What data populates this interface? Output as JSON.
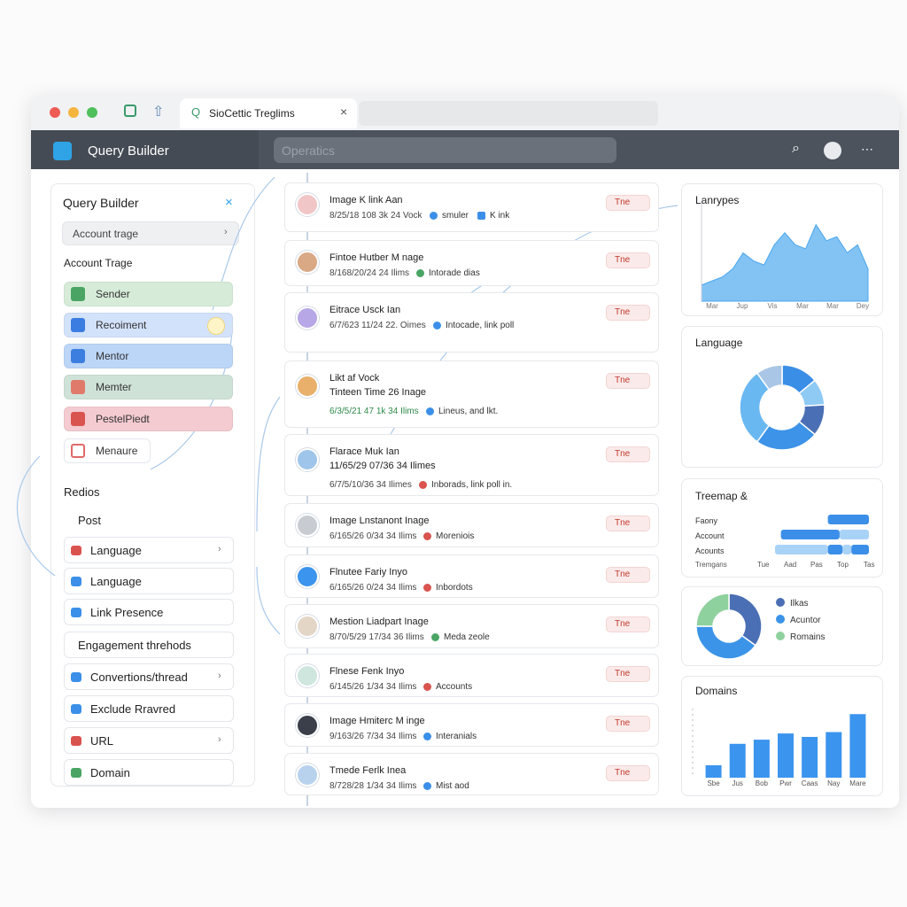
{
  "browser": {
    "tab_title": "SioCettic Treglims"
  },
  "app_bar": {
    "title": "Query Builder",
    "search_placeholder": "Operatics"
  },
  "query_builder": {
    "title": "Query Builder",
    "dropdown": "Account trage",
    "section_label": "Account Trage",
    "roles": [
      "Sender",
      "Recoiment",
      "Mentor",
      "Memter",
      "PestelPiedt",
      "Menaure"
    ]
  },
  "filters": {
    "title": "Redios",
    "items": [
      "Post",
      "Language",
      "Language",
      "Link Presence",
      "Engagement threhods",
      "Convertions/thread",
      "Exclude Rravred",
      "URL",
      "Domain"
    ]
  },
  "feed": [
    {
      "title": "Image K link Aan",
      "meta": "8/25/18 108 3k 24 Vock",
      "tags": [
        "smuler",
        "K ink"
      ],
      "badge": "Tne"
    },
    {
      "title": "Fintoe Hutber M nage",
      "meta": "8/168/20/24 24 Ilims",
      "tags": [
        "Intorade dias"
      ],
      "badge": "Tne"
    },
    {
      "title": "Eitrace Usck Ian",
      "meta": "6/7/623 11/24 22. Oimes",
      "tags": [
        "Intocade, link poll"
      ],
      "badge": "Tne"
    },
    {
      "title": "Likt af Vock",
      "subtitle": "Tinteen Time 26 Inage",
      "meta": "6/3/5/21 47 1k 34 Ilims",
      "tags": [
        "Lineus, and lkt."
      ],
      "badge": "Tne"
    },
    {
      "title": "Flarace Muk Ian",
      "subtitle": "11/65/29 07/36 34 Ilimes",
      "meta": "6/7/5/10/36 34 Ilimes",
      "tags": [
        "Inborads, link poll in."
      ],
      "badge": "Tne"
    },
    {
      "title": "Image Lnstanont Inage",
      "meta": "6/165/26 0/34 34 Ilims",
      "tags": [
        "Moreniois"
      ],
      "badge": "Tne"
    },
    {
      "title": "Flnutee Fariy Inyo",
      "meta": "6/165/26 0/24 34 Ilims",
      "tags": [
        "Inbordots"
      ],
      "badge": "Tne"
    },
    {
      "title": "Mestion Liadpart Inage",
      "meta": "8/70/5/29 17/34 36 Ilims",
      "tags": [
        "Meda zeole"
      ],
      "badge": "Tne"
    },
    {
      "title": "Flnese Fenk Inyo",
      "meta": "6/145/26 1/34 34 Ilims",
      "tags": [
        "Accounts"
      ],
      "badge": "Tne"
    },
    {
      "title": "Image Hmiterc M inge",
      "meta": "9/163/26 7/34 34 Ilims",
      "tags": [
        "Interanials"
      ],
      "badge": "Tne"
    },
    {
      "title": "Tmede Ferlk Inea",
      "meta": "8/728/28 1/34 34 Ilims",
      "tags": [
        "Mist aod"
      ],
      "badge": "Tne"
    }
  ],
  "chart_data": [
    {
      "type": "area",
      "title": "Lanrypes",
      "color": "#6cb8f2",
      "values": [
        2,
        2.5,
        3,
        4,
        6,
        5,
        4.5,
        7,
        8.5,
        7,
        6.5,
        9.5,
        7.5,
        8,
        6,
        7,
        4
      ],
      "ylim": [
        0,
        11
      ],
      "x_labels": [
        "Mar",
        "Jup",
        "Vis",
        "Mar",
        "Mar",
        "Dey"
      ]
    },
    {
      "type": "donut",
      "title": "Language",
      "values": [
        14,
        10,
        12,
        24,
        30,
        10
      ],
      "colors": [
        "#3a8ee6",
        "#8fcaf5",
        "#4a6fb5",
        "#3d93e8",
        "#6ab8f2",
        "#a9c6e6"
      ]
    },
    {
      "type": "hbar-stacked",
      "title": "Treemap &",
      "categories": [
        "Faony",
        "Account",
        "Acounts"
      ],
      "series": [
        {
          "color": "#3b8fe8",
          "values": [
            1.4,
            0,
            0.6
          ]
        },
        {
          "color": "#a9d2f7",
          "values": [
            0,
            1.0,
            0.3
          ]
        },
        {
          "color": "#3b8fe8",
          "values": [
            0,
            2.0,
            0.5
          ]
        },
        {
          "color": "#a9d2f7",
          "values": [
            0,
            0,
            1.8
          ]
        }
      ],
      "xlim": [
        0,
        3.2
      ],
      "x_labels": [
        "Tremgans",
        "Tue",
        "Aad",
        "Pas",
        "Top",
        "Tas"
      ]
    },
    {
      "type": "donut",
      "series": [
        {
          "name": "Ilkas",
          "color": "#4a6fb5",
          "values": [
            35
          ]
        },
        {
          "name": "Acuntor",
          "color": "#3b94e8",
          "values": [
            40
          ]
        },
        {
          "name": "Romains",
          "color": "#8fd19e",
          "values": [
            25
          ]
        }
      ]
    },
    {
      "type": "bar",
      "title": "Domains",
      "color": "#3b94ee",
      "categories": [
        "Sbe",
        "Jus",
        "Bob",
        "Pwr",
        "Caas",
        "Nay",
        "Mare"
      ],
      "values": [
        1.8,
        4.9,
        5.5,
        6.4,
        5.9,
        6.6,
        9.2
      ],
      "ylim": [
        0,
        10
      ]
    }
  ]
}
